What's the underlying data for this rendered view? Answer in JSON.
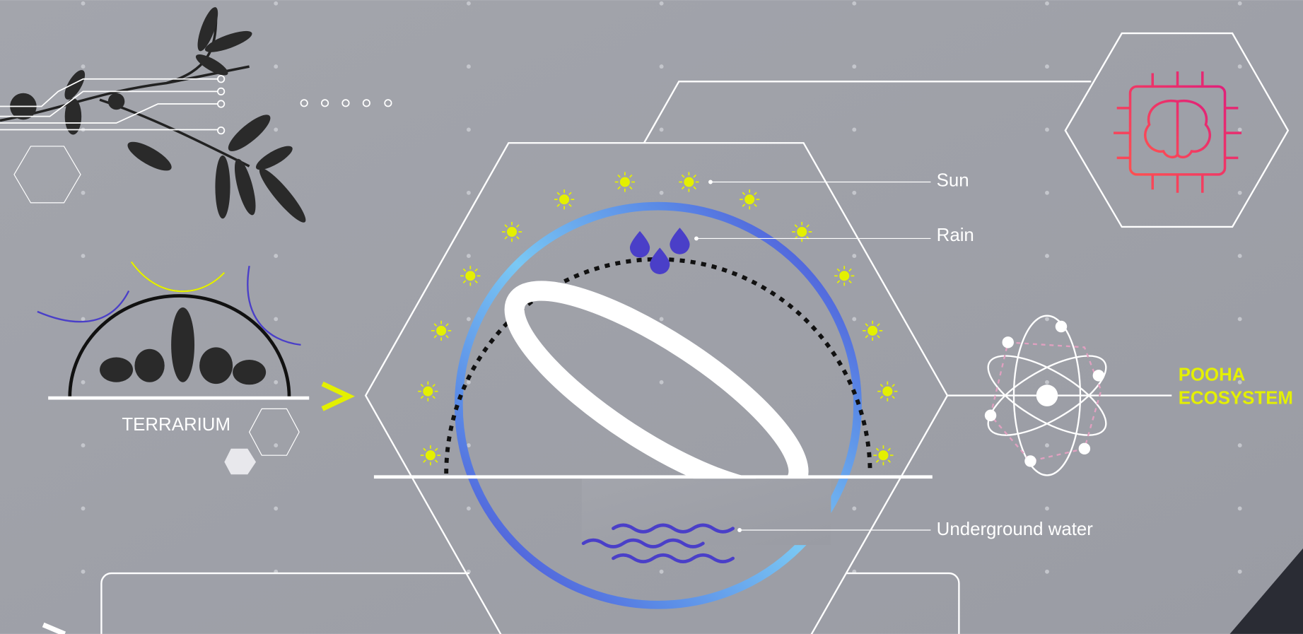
{
  "labels": {
    "sun": "Sun",
    "rain": "Rain",
    "underground_water": "Underground water"
  },
  "terrarium": {
    "label": "TERRARIUM"
  },
  "ecosystem": {
    "line1": "POOHA",
    "line2": "ECOSYSTEM"
  }
}
